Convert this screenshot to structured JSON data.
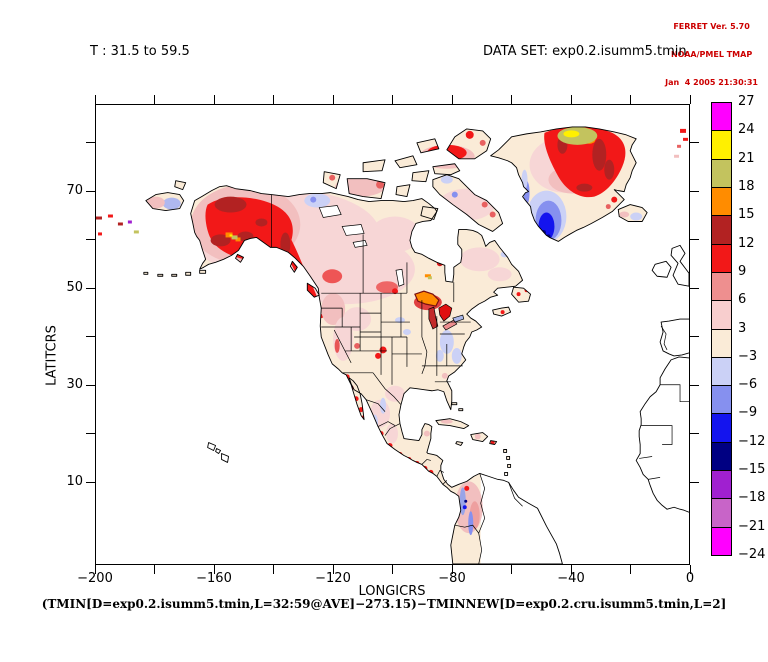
{
  "branding": {
    "lines": [
      "FERRET Ver. 5.70",
      "NOAA/PMEL TMAP",
      "Jan  4 2005 21:30:31"
    ],
    "color": "#CC0000"
  },
  "titles": {
    "left": "T : 31.5 to 59.5",
    "dataset": "DATA SET: exp0.2.isumm5.tmin"
  },
  "caption": "(TMIN[D=exp0.2.isumm5.tmin,L=32:59@AVE]−273.15)−TMINNEW[D=exp0.2.cru.isumm5.tmin,L=2]",
  "axes": {
    "x": {
      "label": "LONGICRS",
      "min": -200,
      "max": 0,
      "minor_step": 20,
      "tick_values": [
        -200,
        -160,
        -120,
        -80,
        -40,
        0
      ],
      "tick_labels": [
        "−200",
        "−160",
        "−120",
        "−80",
        "−40",
        "0"
      ]
    },
    "y": {
      "label": "LATITCRS",
      "min": -7,
      "max": 88,
      "minor_step": 10,
      "tick_values": [
        10,
        30,
        50,
        70
      ],
      "tick_labels": [
        "10",
        "30",
        "50",
        "70"
      ]
    }
  },
  "colorbar": {
    "boundary_labels": [
      "27",
      "24",
      "21",
      "18",
      "15",
      "12",
      "9",
      "6",
      "3",
      "−3",
      "−6",
      "−9",
      "−12",
      "−15",
      "−18",
      "−21",
      "−24"
    ],
    "band_ranges_top_to_bottom": [
      "24..27",
      "21..24",
      "18..21",
      "15..18",
      "12..15",
      "9..12",
      "6..9",
      "3..6",
      "-3..3",
      "-6..-3",
      "-9..-6",
      "-12..-9",
      "-15..-12",
      "-18..-15",
      "-21..-18",
      "-24..-21"
    ],
    "band_colors_top_to_bottom": [
      "#FF00FF",
      "#FFF000",
      "#C3C35E",
      "#FF8C00",
      "#B22222",
      "#F21818",
      "#EE8F8F",
      "#F8CECE",
      "#FAEBD7",
      "#CBD1F6",
      "#8690EF",
      "#1414EE",
      "#000082",
      "#A020D0",
      "#C864C8",
      "#FF00FF"
    ]
  },
  "chart_data": {
    "type": "heatmap",
    "subtype": "filled-contour-map",
    "title": "T : 31.5 to 59.5",
    "dataset": "exp0.2.isumm5.tmin",
    "expression": "(TMIN[D=exp0.2.isumm5.tmin,L=32:59@AVE]-273.15)-TMINNEW[D=exp0.2.cru.isumm5.tmin,L=2]",
    "xlabel": "LONGICRS",
    "ylabel": "LATITCRS",
    "xlim": [
      -200,
      0
    ],
    "ylim": [
      -7,
      88
    ],
    "x_ticks": [
      -200,
      -160,
      -120,
      -80,
      -40,
      0
    ],
    "y_ticks": [
      10,
      30,
      50,
      70
    ],
    "grid": false,
    "legend_position": "right",
    "contour_levels": [
      -24,
      -21,
      -18,
      -15,
      -12,
      -9,
      -6,
      -3,
      3,
      6,
      9,
      12,
      15,
      18,
      21,
      24,
      27
    ],
    "palette_low_to_high": [
      "#FF00FF",
      "#C864C8",
      "#A020D0",
      "#000082",
      "#1414EE",
      "#8690EF",
      "#CBD1F6",
      "#FAEBD7",
      "#F8CECE",
      "#EE8F8F",
      "#F21818",
      "#B22222",
      "#FF8C00",
      "#C3C35E",
      "#FFF000",
      "#FF00FF"
    ],
    "notable_features": [
      {
        "region": "Alaska interior and south coast",
        "approx_value": "9 to 18, local spots to 21"
      },
      {
        "region": "British Columbia coast range",
        "approx_value": "9 to 15"
      },
      {
        "region": "Northeast Greenland",
        "approx_value": "9 to 24, olive/yellow core"
      },
      {
        "region": "South Greenland",
        "approx_value": "-15 to -3"
      },
      {
        "region": "Great Lakes (Superior/Michigan/Huron)",
        "approx_value": "12 to 18"
      },
      {
        "region": "Most of Canada and contiguous US",
        "approx_value": "-3 to 6"
      },
      {
        "region": "Mexican Pacific and Baja coasts",
        "approx_value": "9 to 12 specks"
      },
      {
        "region": "Colombia / NW South America",
        "approx_value": "-9 to 6 mixed"
      }
    ]
  }
}
